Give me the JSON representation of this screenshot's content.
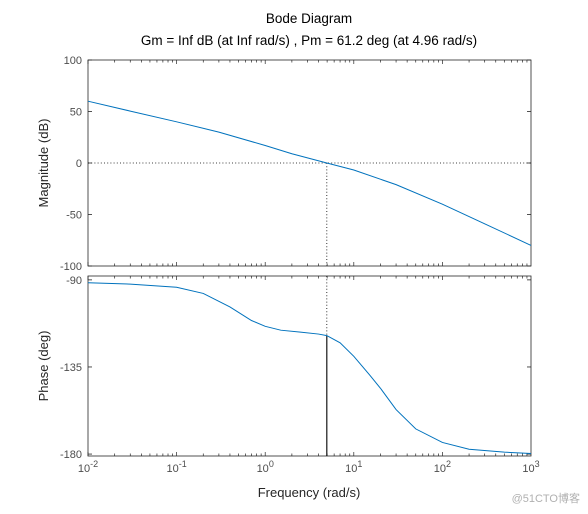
{
  "chart_data": {
    "type": "line",
    "title": "Bode Diagram",
    "subtitle": "Gm = Inf dB (at Inf rad/s) ,  Pm = 61.2 deg (at 4.96 rad/s)",
    "xlabel": "Frequency  (rad/s)",
    "xscale": "log",
    "xlim": [
      0.01,
      1000
    ],
    "x_tick_labels": [
      {
        "base": "10",
        "exp": "-2"
      },
      {
        "base": "10",
        "exp": "-1"
      },
      {
        "base": "10",
        "exp": "0"
      },
      {
        "base": "10",
        "exp": "1"
      },
      {
        "base": "10",
        "exp": "2"
      },
      {
        "base": "10",
        "exp": "3"
      }
    ],
    "grid": false,
    "line_color": "#0072bd",
    "subplots": [
      {
        "name": "magnitude",
        "ylabel": "Magnitude (dB)",
        "ylim": [
          -100,
          100
        ],
        "yticks": [
          100,
          50,
          0,
          -50,
          -100
        ],
        "reference_line_y": 0,
        "series": [
          {
            "x": [
              0.01,
              0.03,
              0.1,
              0.3,
              1,
              2,
              4.96,
              10,
              30,
              100,
              300,
              1000
            ],
            "y": [
              60,
              50.4,
              40,
              30,
              17,
              9,
              0,
              -6.8,
              -21,
              -40,
              -59,
              -80
            ]
          }
        ]
      },
      {
        "name": "phase",
        "ylabel": "Phase (deg)",
        "ylim": [
          -181,
          -88
        ],
        "yticks": [
          -90,
          -135,
          -180
        ],
        "series": [
          {
            "x": [
              0.01,
              0.03,
              0.1,
              0.2,
              0.4,
              0.7,
              1,
              1.5,
              2.5,
              4,
              4.96,
              7,
              10,
              15,
              20,
              30,
              50,
              100,
              200,
              500,
              1000
            ],
            "y": [
              -91.5,
              -92.2,
              -93.8,
              -97,
              -104,
              -111,
              -114,
              -116,
              -117,
              -118,
              -118.8,
              -122.5,
              -129.5,
              -139,
              -146,
              -157,
              -167,
              -174,
              -177.5,
              -179,
              -179.7
            ]
          }
        ]
      }
    ],
    "crossover": {
      "frequency": 4.96,
      "phase": -118.8,
      "phase_margin_deg": 61.2
    }
  },
  "watermark": "@51CTO博客"
}
